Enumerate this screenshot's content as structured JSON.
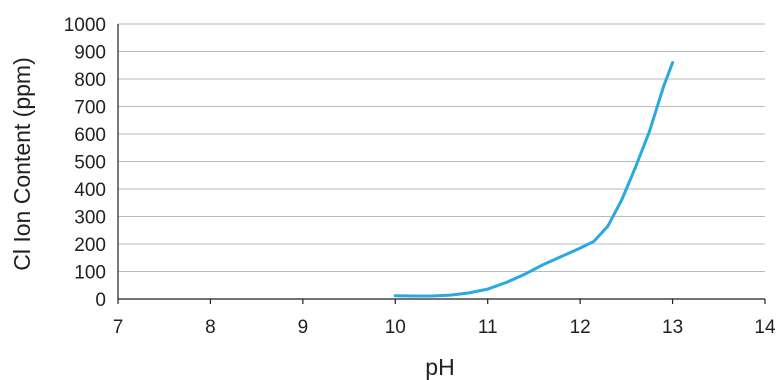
{
  "chart_data": {
    "type": "line",
    "title": "",
    "xlabel": "pH",
    "ylabel": "Cl Ion Content (ppm)",
    "xlim": [
      7,
      14
    ],
    "ylim": [
      0,
      1000
    ],
    "x_ticks": [
      7,
      8,
      9,
      10,
      11,
      12,
      13,
      14
    ],
    "y_ticks": [
      0,
      100,
      200,
      300,
      400,
      500,
      600,
      700,
      800,
      900,
      1000
    ],
    "grid": "horizontal",
    "legend": "none",
    "series": [
      {
        "color": "#29a9e1",
        "points": [
          [
            10.0,
            12
          ],
          [
            10.2,
            11
          ],
          [
            10.4,
            11
          ],
          [
            10.6,
            14
          ],
          [
            10.8,
            22
          ],
          [
            11.0,
            36
          ],
          [
            11.2,
            60
          ],
          [
            11.4,
            90
          ],
          [
            11.6,
            125
          ],
          [
            11.8,
            155
          ],
          [
            12.0,
            185
          ],
          [
            12.15,
            210
          ],
          [
            12.3,
            265
          ],
          [
            12.45,
            360
          ],
          [
            12.6,
            480
          ],
          [
            12.75,
            610
          ],
          [
            12.9,
            770
          ],
          [
            13.0,
            860
          ]
        ]
      }
    ]
  }
}
